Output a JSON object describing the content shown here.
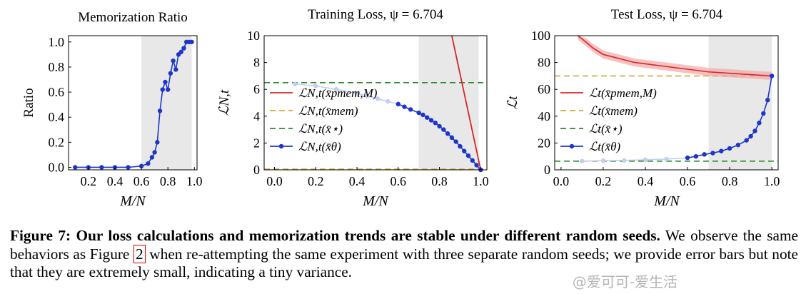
{
  "chart_data": [
    {
      "type": "line",
      "title": "Memorization Ratio",
      "xlabel": "M/N",
      "ylabel": "Ratio",
      "xlim": [
        0.05,
        1.02
      ],
      "ylim": [
        -0.02,
        1.05
      ],
      "xticks": [
        "0.2",
        "0.4",
        "0.6",
        "0.8",
        "1.0"
      ],
      "yticks": [
        "0.0",
        "0.2",
        "0.4",
        "0.6",
        "0.8",
        "1.0"
      ],
      "shaded_region": [
        0.6,
        0.98
      ],
      "series": [
        {
          "x": [
            0.1,
            0.2,
            0.3,
            0.4,
            0.5,
            0.6,
            0.65,
            0.68,
            0.7,
            0.72,
            0.74,
            0.76,
            0.78,
            0.8,
            0.82,
            0.84,
            0.86,
            0.88,
            0.9,
            0.92,
            0.94,
            0.96,
            0.98
          ],
          "y": [
            0.0,
            0.0,
            0.0,
            0.0,
            0.0,
            0.01,
            0.03,
            0.08,
            0.12,
            0.2,
            0.45,
            0.62,
            0.68,
            0.62,
            0.75,
            0.85,
            0.78,
            0.9,
            0.92,
            0.95,
            1.0,
            1.0,
            1.0
          ]
        }
      ]
    },
    {
      "type": "line",
      "title": "Training Loss, ψ = 6.704",
      "xlabel": "M/N",
      "ylabel": "ℒN,t",
      "xlim": [
        -0.05,
        1.03
      ],
      "ylim": [
        0,
        10
      ],
      "xticks": [
        "0.0",
        "0.2",
        "0.4",
        "0.6",
        "0.8",
        "1.0"
      ],
      "yticks": [
        "0",
        "2",
        "4",
        "6",
        "8",
        "10"
      ],
      "shaded_region": [
        0.7,
        0.99
      ],
      "hlines": {
        "mem": 0.05,
        "star": 6.5
      },
      "pmem_line": {
        "x": [
          0.86,
          1.0
        ],
        "y": [
          10.0,
          0.0
        ]
      },
      "legend": [
        "ℒN,t(x̄pmem,M)",
        "ℒN,t(x̄mem)",
        "ℒN,t(x̄⋆)",
        "ℒN,t(x̄θ)"
      ],
      "series": [
        {
          "x": [
            0.1,
            0.2,
            0.3,
            0.4,
            0.45,
            0.5,
            0.55,
            0.6,
            0.63,
            0.66,
            0.7,
            0.72,
            0.74,
            0.76,
            0.78,
            0.8,
            0.82,
            0.84,
            0.86,
            0.88,
            0.9,
            0.92,
            0.94,
            0.96,
            0.98,
            1.0
          ],
          "y": [
            6.4,
            6.25,
            6.0,
            5.7,
            5.5,
            5.3,
            5.1,
            4.9,
            4.7,
            4.5,
            4.25,
            4.1,
            3.9,
            3.7,
            3.5,
            3.25,
            3.0,
            2.7,
            2.4,
            2.1,
            1.75,
            1.4,
            1.05,
            0.7,
            0.35,
            0.0
          ]
        }
      ]
    },
    {
      "type": "line",
      "title": "Test Loss, ψ = 6.704",
      "xlabel": "M/N",
      "ylabel": "ℒt",
      "xlim": [
        -0.03,
        1.03
      ],
      "ylim": [
        0,
        100
      ],
      "xticks": [
        "0.0",
        "0.2",
        "0.4",
        "0.6",
        "0.8",
        "1.0"
      ],
      "yticks": [
        "0",
        "20",
        "40",
        "60",
        "80",
        "100"
      ],
      "shaded_region": [
        0.7,
        1.0
      ],
      "hlines": {
        "mem": 70,
        "star": 6.5
      },
      "legend": [
        "ℒt(x̄pmem,M)",
        "ℒt(x̄mem)",
        "ℒt(x̄⋆)",
        "ℒt(x̄θ)"
      ],
      "pmem_series": {
        "x": [
          0.08,
          0.12,
          0.15,
          0.2,
          0.25,
          0.3,
          0.35,
          0.4,
          0.5,
          0.6,
          0.7,
          0.8,
          0.9,
          1.0
        ],
        "y": [
          100,
          95,
          91,
          86,
          84,
          82,
          80,
          79,
          77,
          75,
          73,
          72,
          71,
          70
        ]
      },
      "series": [
        {
          "x": [
            0.1,
            0.2,
            0.3,
            0.4,
            0.5,
            0.6,
            0.64,
            0.68,
            0.72,
            0.76,
            0.8,
            0.84,
            0.88,
            0.9,
            0.92,
            0.94,
            0.96,
            0.98,
            1.0
          ],
          "y": [
            6.5,
            6.8,
            7.0,
            7.5,
            8.0,
            9.0,
            10.0,
            11.5,
            12.5,
            14.0,
            16.0,
            18.5,
            22.0,
            25.0,
            29.0,
            35.0,
            42.0,
            52.0,
            70.0
          ]
        }
      ]
    }
  ],
  "colors": {
    "pmem": "#d62728",
    "pmem_band": "#f4a6a6",
    "mem": "#d4a73a",
    "star": "#2b8a2b",
    "theta": "#1f35c8",
    "theta_faded": "#c5cdf0",
    "shade": "#e8e8e8"
  },
  "caption": {
    "label": "Figure 7:",
    "bold_text": " Our loss calculations and memorization trends are stable under different random seeds.",
    "text_1": " We observe the same behaviors as Figure ",
    "ref": "2",
    "text_2": " when re-attempting the same experiment with three separate random seeds; we provide error bars but note that they are extremely small, indicating a tiny variance."
  },
  "watermark": "@爱可可-爱生活"
}
